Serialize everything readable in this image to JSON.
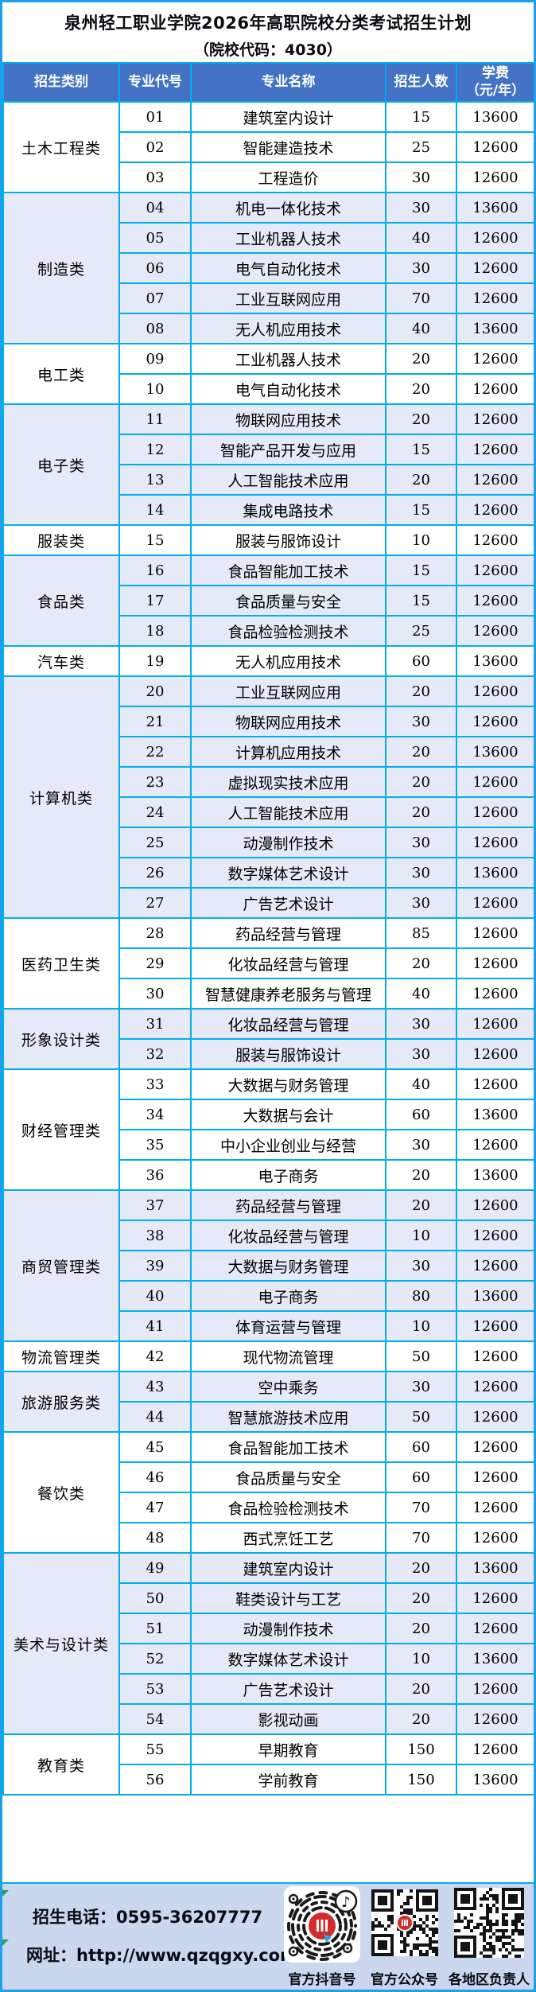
{
  "title": {
    "line1": "泉州轻工职业学院2026年高职院校分类考试招生计划",
    "line2": "（院校代码：4030）"
  },
  "table": {
    "headers": {
      "category": "招生类别",
      "code": "专业代号",
      "major": "专业名称",
      "count": "招生人数",
      "fee_line1": "学费",
      "fee_line2": "（元/年）"
    },
    "groups": [
      {
        "category": "土木工程类",
        "rows": [
          {
            "code": "01",
            "major": "建筑室内设计",
            "count": "15",
            "fee": "13600"
          },
          {
            "code": "02",
            "major": "智能建造技术",
            "count": "25",
            "fee": "12600"
          },
          {
            "code": "03",
            "major": "工程造价",
            "count": "30",
            "fee": "12600"
          }
        ]
      },
      {
        "category": "制造类",
        "rows": [
          {
            "code": "04",
            "major": "机电一体化技术",
            "count": "30",
            "fee": "13600"
          },
          {
            "code": "05",
            "major": "工业机器人技术",
            "count": "40",
            "fee": "12600"
          },
          {
            "code": "06",
            "major": "电气自动化技术",
            "count": "30",
            "fee": "12600"
          },
          {
            "code": "07",
            "major": "工业互联网应用",
            "count": "70",
            "fee": "12600"
          },
          {
            "code": "08",
            "major": "无人机应用技术",
            "count": "40",
            "fee": "13600"
          }
        ]
      },
      {
        "category": "电工类",
        "rows": [
          {
            "code": "09",
            "major": "工业机器人技术",
            "count": "20",
            "fee": "12600"
          },
          {
            "code": "10",
            "major": "电气自动化技术",
            "count": "20",
            "fee": "12600"
          }
        ]
      },
      {
        "category": "电子类",
        "rows": [
          {
            "code": "11",
            "major": "物联网应用技术",
            "count": "20",
            "fee": "12600"
          },
          {
            "code": "12",
            "major": "智能产品开发与应用",
            "count": "15",
            "fee": "12600"
          },
          {
            "code": "13",
            "major": "人工智能技术应用",
            "count": "20",
            "fee": "12600"
          },
          {
            "code": "14",
            "major": "集成电路技术",
            "count": "15",
            "fee": "12600"
          }
        ]
      },
      {
        "category": "服装类",
        "rows": [
          {
            "code": "15",
            "major": "服装与服饰设计",
            "count": "10",
            "fee": "12600"
          }
        ]
      },
      {
        "category": "食品类",
        "rows": [
          {
            "code": "16",
            "major": "食品智能加工技术",
            "count": "15",
            "fee": "12600"
          },
          {
            "code": "17",
            "major": "食品质量与安全",
            "count": "15",
            "fee": "12600"
          },
          {
            "code": "18",
            "major": "食品检验检测技术",
            "count": "25",
            "fee": "12600"
          }
        ]
      },
      {
        "category": "汽车类",
        "rows": [
          {
            "code": "19",
            "major": "无人机应用技术",
            "count": "60",
            "fee": "13600"
          }
        ]
      },
      {
        "category": "计算机类",
        "rows": [
          {
            "code": "20",
            "major": "工业互联网应用",
            "count": "20",
            "fee": "12600"
          },
          {
            "code": "21",
            "major": "物联网应用技术",
            "count": "30",
            "fee": "12600"
          },
          {
            "code": "22",
            "major": "计算机应用技术",
            "count": "20",
            "fee": "13600"
          },
          {
            "code": "23",
            "major": "虚拟现实技术应用",
            "count": "20",
            "fee": "12600"
          },
          {
            "code": "24",
            "major": "人工智能技术应用",
            "count": "20",
            "fee": "12600"
          },
          {
            "code": "25",
            "major": "动漫制作技术",
            "count": "30",
            "fee": "12600"
          },
          {
            "code": "26",
            "major": "数字媒体艺术设计",
            "count": "30",
            "fee": "13600"
          },
          {
            "code": "27",
            "major": "广告艺术设计",
            "count": "30",
            "fee": "12600"
          }
        ]
      },
      {
        "category": "医药卫生类",
        "rows": [
          {
            "code": "28",
            "major": "药品经营与管理",
            "count": "85",
            "fee": "12600"
          },
          {
            "code": "29",
            "major": "化妆品经营与管理",
            "count": "20",
            "fee": "12600"
          },
          {
            "code": "30",
            "major": "智慧健康养老服务与管理",
            "count": "40",
            "fee": "12600"
          }
        ]
      },
      {
        "category": "形象设计类",
        "rows": [
          {
            "code": "31",
            "major": "化妆品经营与管理",
            "count": "30",
            "fee": "12600"
          },
          {
            "code": "32",
            "major": "服装与服饰设计",
            "count": "30",
            "fee": "12600"
          }
        ]
      },
      {
        "category": "财经管理类",
        "rows": [
          {
            "code": "33",
            "major": "大数据与财务管理",
            "count": "40",
            "fee": "12600"
          },
          {
            "code": "34",
            "major": "大数据与会计",
            "count": "60",
            "fee": "13600"
          },
          {
            "code": "35",
            "major": "中小企业创业与经营",
            "count": "30",
            "fee": "12600"
          },
          {
            "code": "36",
            "major": "电子商务",
            "count": "20",
            "fee": "13600"
          }
        ]
      },
      {
        "category": "商贸管理类",
        "rows": [
          {
            "code": "37",
            "major": "药品经营与管理",
            "count": "20",
            "fee": "12600"
          },
          {
            "code": "38",
            "major": "化妆品经营与管理",
            "count": "10",
            "fee": "12600"
          },
          {
            "code": "39",
            "major": "大数据与财务管理",
            "count": "30",
            "fee": "12600"
          },
          {
            "code": "40",
            "major": "电子商务",
            "count": "80",
            "fee": "13600"
          },
          {
            "code": "41",
            "major": "体育运营与管理",
            "count": "10",
            "fee": "12600"
          }
        ]
      },
      {
        "category": "物流管理类",
        "rows": [
          {
            "code": "42",
            "major": "现代物流管理",
            "count": "50",
            "fee": "12600"
          }
        ]
      },
      {
        "category": "旅游服务类",
        "rows": [
          {
            "code": "43",
            "major": "空中乘务",
            "count": "30",
            "fee": "12600"
          },
          {
            "code": "44",
            "major": "智慧旅游技术应用",
            "count": "50",
            "fee": "12600"
          }
        ]
      },
      {
        "category": "餐饮类",
        "rows": [
          {
            "code": "45",
            "major": "食品智能加工技术",
            "count": "60",
            "fee": "12600"
          },
          {
            "code": "46",
            "major": "食品质量与安全",
            "count": "60",
            "fee": "12600"
          },
          {
            "code": "47",
            "major": "食品检验检测技术",
            "count": "70",
            "fee": "12600"
          },
          {
            "code": "48",
            "major": "西式烹饪工艺",
            "count": "70",
            "fee": "12600"
          }
        ]
      },
      {
        "category": "美术与设计类",
        "rows": [
          {
            "code": "49",
            "major": "建筑室内设计",
            "count": "20",
            "fee": "13600"
          },
          {
            "code": "50",
            "major": "鞋类设计与工艺",
            "count": "20",
            "fee": "12600"
          },
          {
            "code": "51",
            "major": "动漫制作技术",
            "count": "20",
            "fee": "12600"
          },
          {
            "code": "52",
            "major": "数字媒体艺术设计",
            "count": "10",
            "fee": "13600"
          },
          {
            "code": "53",
            "major": "广告艺术设计",
            "count": "20",
            "fee": "12600"
          },
          {
            "code": "54",
            "major": "影视动画",
            "count": "20",
            "fee": "12600"
          }
        ]
      },
      {
        "category": "教育类",
        "rows": [
          {
            "code": "55",
            "major": "早期教育",
            "count": "150",
            "fee": "12600"
          },
          {
            "code": "56",
            "major": "学前教育",
            "count": "150",
            "fee": "13600"
          }
        ]
      }
    ]
  },
  "footer": {
    "phone_label": "招生电话：0595-36207777",
    "site_label": "网址：http://www.qzqgxy.com",
    "qr_labels": [
      "官方抖音号",
      "官方公众号",
      "各地区负责人"
    ]
  },
  "colors": {
    "outer_border": "#1CA0EC",
    "grid": "#00AEEF",
    "header_bg": "#4472C4",
    "alt_row_bg": "#E6EAF8",
    "footer_bg": "#CBD7EF",
    "logo_red": "#D42B2B",
    "pin_blue": "#2FA8E1",
    "marker_green": "#2E9E4F"
  }
}
